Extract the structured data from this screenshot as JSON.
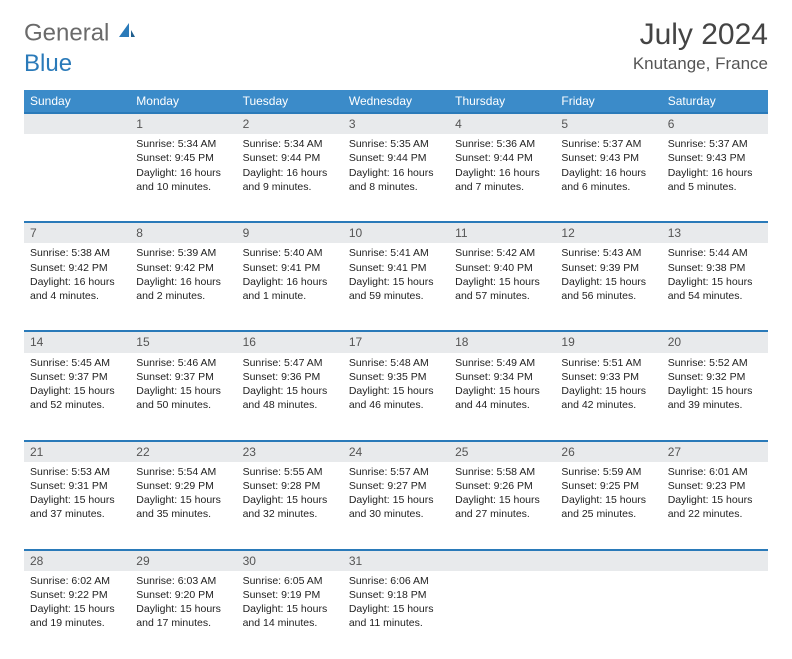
{
  "brand": {
    "part1": "General",
    "part2": "Blue"
  },
  "title": "July 2024",
  "location": "Knutange, France",
  "colors": {
    "header_bg": "#3b8bc9",
    "row_accent": "#2a7ab9",
    "daynum_bg": "#e8eaec",
    "text": "#333333"
  },
  "weekdays": [
    "Sunday",
    "Monday",
    "Tuesday",
    "Wednesday",
    "Thursday",
    "Friday",
    "Saturday"
  ],
  "weeks": [
    {
      "nums": [
        "",
        "1",
        "2",
        "3",
        "4",
        "5",
        "6"
      ],
      "cells": [
        null,
        {
          "sr": "Sunrise: 5:34 AM",
          "ss": "Sunset: 9:45 PM",
          "d1": "Daylight: 16 hours",
          "d2": "and 10 minutes."
        },
        {
          "sr": "Sunrise: 5:34 AM",
          "ss": "Sunset: 9:44 PM",
          "d1": "Daylight: 16 hours",
          "d2": "and 9 minutes."
        },
        {
          "sr": "Sunrise: 5:35 AM",
          "ss": "Sunset: 9:44 PM",
          "d1": "Daylight: 16 hours",
          "d2": "and 8 minutes."
        },
        {
          "sr": "Sunrise: 5:36 AM",
          "ss": "Sunset: 9:44 PM",
          "d1": "Daylight: 16 hours",
          "d2": "and 7 minutes."
        },
        {
          "sr": "Sunrise: 5:37 AM",
          "ss": "Sunset: 9:43 PM",
          "d1": "Daylight: 16 hours",
          "d2": "and 6 minutes."
        },
        {
          "sr": "Sunrise: 5:37 AM",
          "ss": "Sunset: 9:43 PM",
          "d1": "Daylight: 16 hours",
          "d2": "and 5 minutes."
        }
      ]
    },
    {
      "nums": [
        "7",
        "8",
        "9",
        "10",
        "11",
        "12",
        "13"
      ],
      "cells": [
        {
          "sr": "Sunrise: 5:38 AM",
          "ss": "Sunset: 9:42 PM",
          "d1": "Daylight: 16 hours",
          "d2": "and 4 minutes."
        },
        {
          "sr": "Sunrise: 5:39 AM",
          "ss": "Sunset: 9:42 PM",
          "d1": "Daylight: 16 hours",
          "d2": "and 2 minutes."
        },
        {
          "sr": "Sunrise: 5:40 AM",
          "ss": "Sunset: 9:41 PM",
          "d1": "Daylight: 16 hours",
          "d2": "and 1 minute."
        },
        {
          "sr": "Sunrise: 5:41 AM",
          "ss": "Sunset: 9:41 PM",
          "d1": "Daylight: 15 hours",
          "d2": "and 59 minutes."
        },
        {
          "sr": "Sunrise: 5:42 AM",
          "ss": "Sunset: 9:40 PM",
          "d1": "Daylight: 15 hours",
          "d2": "and 57 minutes."
        },
        {
          "sr": "Sunrise: 5:43 AM",
          "ss": "Sunset: 9:39 PM",
          "d1": "Daylight: 15 hours",
          "d2": "and 56 minutes."
        },
        {
          "sr": "Sunrise: 5:44 AM",
          "ss": "Sunset: 9:38 PM",
          "d1": "Daylight: 15 hours",
          "d2": "and 54 minutes."
        }
      ]
    },
    {
      "nums": [
        "14",
        "15",
        "16",
        "17",
        "18",
        "19",
        "20"
      ],
      "cells": [
        {
          "sr": "Sunrise: 5:45 AM",
          "ss": "Sunset: 9:37 PM",
          "d1": "Daylight: 15 hours",
          "d2": "and 52 minutes."
        },
        {
          "sr": "Sunrise: 5:46 AM",
          "ss": "Sunset: 9:37 PM",
          "d1": "Daylight: 15 hours",
          "d2": "and 50 minutes."
        },
        {
          "sr": "Sunrise: 5:47 AM",
          "ss": "Sunset: 9:36 PM",
          "d1": "Daylight: 15 hours",
          "d2": "and 48 minutes."
        },
        {
          "sr": "Sunrise: 5:48 AM",
          "ss": "Sunset: 9:35 PM",
          "d1": "Daylight: 15 hours",
          "d2": "and 46 minutes."
        },
        {
          "sr": "Sunrise: 5:49 AM",
          "ss": "Sunset: 9:34 PM",
          "d1": "Daylight: 15 hours",
          "d2": "and 44 minutes."
        },
        {
          "sr": "Sunrise: 5:51 AM",
          "ss": "Sunset: 9:33 PM",
          "d1": "Daylight: 15 hours",
          "d2": "and 42 minutes."
        },
        {
          "sr": "Sunrise: 5:52 AM",
          "ss": "Sunset: 9:32 PM",
          "d1": "Daylight: 15 hours",
          "d2": "and 39 minutes."
        }
      ]
    },
    {
      "nums": [
        "21",
        "22",
        "23",
        "24",
        "25",
        "26",
        "27"
      ],
      "cells": [
        {
          "sr": "Sunrise: 5:53 AM",
          "ss": "Sunset: 9:31 PM",
          "d1": "Daylight: 15 hours",
          "d2": "and 37 minutes."
        },
        {
          "sr": "Sunrise: 5:54 AM",
          "ss": "Sunset: 9:29 PM",
          "d1": "Daylight: 15 hours",
          "d2": "and 35 minutes."
        },
        {
          "sr": "Sunrise: 5:55 AM",
          "ss": "Sunset: 9:28 PM",
          "d1": "Daylight: 15 hours",
          "d2": "and 32 minutes."
        },
        {
          "sr": "Sunrise: 5:57 AM",
          "ss": "Sunset: 9:27 PM",
          "d1": "Daylight: 15 hours",
          "d2": "and 30 minutes."
        },
        {
          "sr": "Sunrise: 5:58 AM",
          "ss": "Sunset: 9:26 PM",
          "d1": "Daylight: 15 hours",
          "d2": "and 27 minutes."
        },
        {
          "sr": "Sunrise: 5:59 AM",
          "ss": "Sunset: 9:25 PM",
          "d1": "Daylight: 15 hours",
          "d2": "and 25 minutes."
        },
        {
          "sr": "Sunrise: 6:01 AM",
          "ss": "Sunset: 9:23 PM",
          "d1": "Daylight: 15 hours",
          "d2": "and 22 minutes."
        }
      ]
    },
    {
      "nums": [
        "28",
        "29",
        "30",
        "31",
        "",
        "",
        ""
      ],
      "cells": [
        {
          "sr": "Sunrise: 6:02 AM",
          "ss": "Sunset: 9:22 PM",
          "d1": "Daylight: 15 hours",
          "d2": "and 19 minutes."
        },
        {
          "sr": "Sunrise: 6:03 AM",
          "ss": "Sunset: 9:20 PM",
          "d1": "Daylight: 15 hours",
          "d2": "and 17 minutes."
        },
        {
          "sr": "Sunrise: 6:05 AM",
          "ss": "Sunset: 9:19 PM",
          "d1": "Daylight: 15 hours",
          "d2": "and 14 minutes."
        },
        {
          "sr": "Sunrise: 6:06 AM",
          "ss": "Sunset: 9:18 PM",
          "d1": "Daylight: 15 hours",
          "d2": "and 11 minutes."
        },
        null,
        null,
        null
      ]
    }
  ]
}
